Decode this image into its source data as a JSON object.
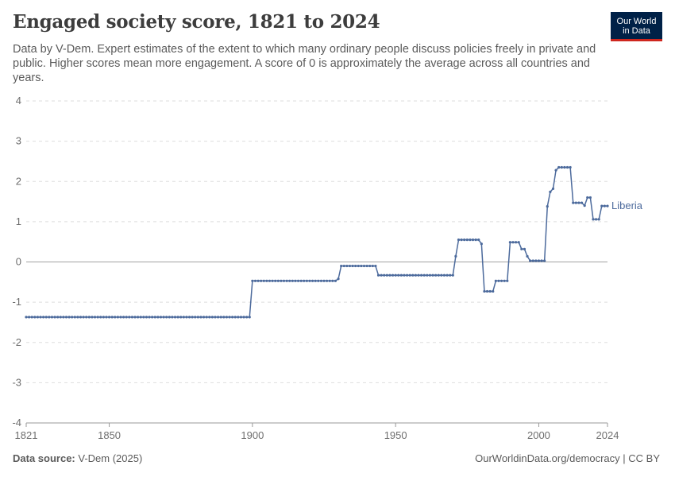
{
  "header": {
    "title": "Engaged society score, 1821 to 2024",
    "subtitle": "Data by V-Dem. Expert estimates of the extent to which many ordinary people discuss policies freely in private and public. Higher scores mean more engagement. A score of 0 is approximately the average across all countries and years."
  },
  "logo": {
    "line1": "Our World",
    "line2": "in Data"
  },
  "footer": {
    "source_label": "Data source:",
    "source_value": "V-Dem (2025)",
    "link": "OurWorldinData.org/democracy | CC BY"
  },
  "colors": {
    "series": "#4c6a9c",
    "grid": "#dddddd",
    "zero": "#a1a1a1"
  },
  "chart_data": {
    "type": "line",
    "title": "Engaged society score, 1821 to 2024",
    "xlim": [
      1821,
      2024
    ],
    "ylim": [
      -4,
      4
    ],
    "x_ticks": [
      1821,
      1850,
      1900,
      1950,
      2000,
      2024
    ],
    "y_ticks": [
      -4,
      -3,
      -2,
      -1,
      0,
      1,
      2,
      3,
      4
    ],
    "grid": true,
    "series": [
      {
        "name": "Liberia",
        "segments": [
          {
            "from": 1821,
            "to": 1899,
            "value": -1.37
          },
          {
            "from": 1900,
            "to": 1929,
            "value": -0.47
          },
          {
            "from": 1930,
            "to": 1930,
            "value": -0.42
          },
          {
            "from": 1931,
            "to": 1943,
            "value": -0.1
          },
          {
            "from": 1944,
            "to": 1970,
            "value": -0.33
          },
          {
            "from": 1971,
            "to": 1971,
            "value": 0.14
          },
          {
            "from": 1972,
            "to": 1979,
            "value": 0.55
          },
          {
            "from": 1980,
            "to": 1980,
            "value": 0.45
          },
          {
            "from": 1981,
            "to": 1984,
            "value": -0.73
          },
          {
            "from": 1985,
            "to": 1989,
            "value": -0.47
          },
          {
            "from": 1990,
            "to": 1993,
            "value": 0.49
          },
          {
            "from": 1994,
            "to": 1995,
            "value": 0.32
          },
          {
            "from": 1996,
            "to": 1996,
            "value": 0.14
          },
          {
            "from": 1997,
            "to": 1997,
            "value": 0.03
          },
          {
            "from": 1998,
            "to": 2002,
            "value": 0.03
          },
          {
            "from": 2003,
            "to": 2003,
            "value": 1.38
          },
          {
            "from": 2004,
            "to": 2004,
            "value": 1.74
          },
          {
            "from": 2005,
            "to": 2005,
            "value": 1.82
          },
          {
            "from": 2006,
            "to": 2006,
            "value": 2.28
          },
          {
            "from": 2007,
            "to": 2011,
            "value": 2.35
          },
          {
            "from": 2012,
            "to": 2015,
            "value": 1.47
          },
          {
            "from": 2016,
            "to": 2016,
            "value": 1.4
          },
          {
            "from": 2017,
            "to": 2018,
            "value": 1.6
          },
          {
            "from": 2019,
            "to": 2021,
            "value": 1.06
          },
          {
            "from": 2022,
            "to": 2024,
            "value": 1.39
          }
        ]
      }
    ]
  }
}
